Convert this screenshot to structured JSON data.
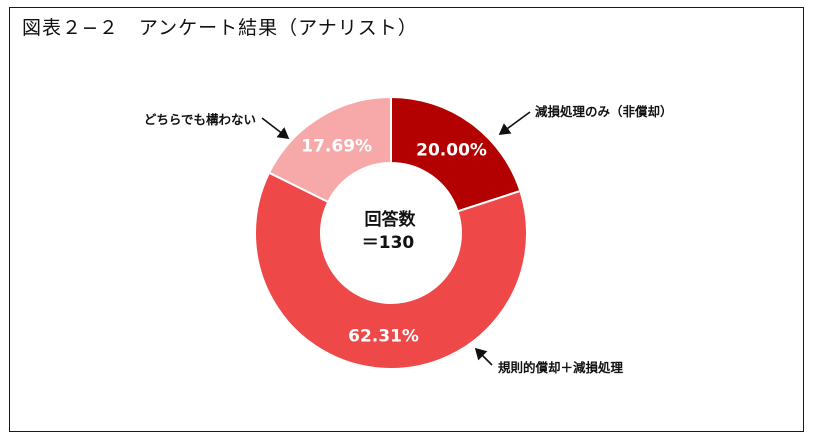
{
  "title": "図表２−２　アンケート結果（アナリスト）",
  "center": {
    "line1": "回答数",
    "line2": "＝130"
  },
  "chart_data": {
    "type": "pie",
    "donut": true,
    "title": "図表２−２　アンケート結果（アナリスト）",
    "total": 130,
    "slices": [
      {
        "label": "減損処理のみ（非償却）",
        "value": 20.0,
        "display": "20.00%",
        "color": "#b30000"
      },
      {
        "label": "規則的償却＋減損処理",
        "value": 62.31,
        "display": "62.31%",
        "color": "#ee4848"
      },
      {
        "label": "どちらでも構わない",
        "value": 17.69,
        "display": "17.69%",
        "color": "#f7a8a8"
      }
    ]
  }
}
